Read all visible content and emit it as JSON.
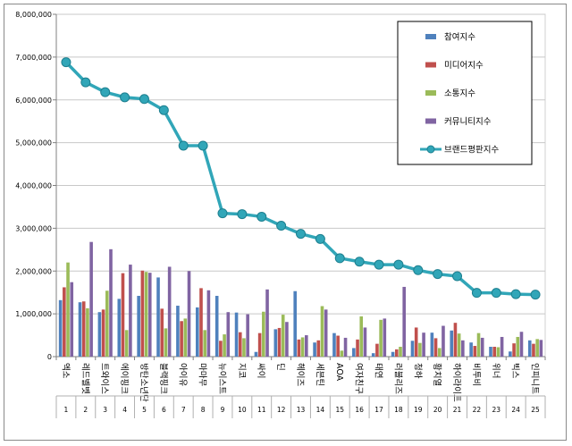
{
  "chart_data": {
    "type": "bar",
    "yticks": [
      "0",
      "1,000,000",
      "2,000,000",
      "3,000,000",
      "4,000,000",
      "5,000,000",
      "6,000,000",
      "7,000,000",
      "8,000,000"
    ],
    "ylim": [
      0,
      8000000
    ],
    "grid": true,
    "legend_position": "top-right",
    "categories": [
      "엑소",
      "레드벨벳",
      "트와이스",
      "에이핑크",
      "방탄소년단",
      "블랙핑크",
      "아이유",
      "마마무",
      "뉴이스트",
      "지코",
      "싸이",
      "딘",
      "헤이즈",
      "세븐틴",
      "AOA",
      "여자친구",
      "태연",
      "러블리즈",
      "청하",
      "황치열",
      "하이라이트",
      "비투비",
      "위너",
      "빅스",
      "인피니트"
    ],
    "ranks": [
      "1",
      "2",
      "3",
      "4",
      "5",
      "6",
      "7",
      "8",
      "9",
      "10",
      "11",
      "12",
      "13",
      "14",
      "15",
      "16",
      "17",
      "18",
      "19",
      "20",
      "21",
      "22",
      "23",
      "24",
      "25"
    ],
    "series": [
      {
        "name": "참여지수",
        "type": "bar",
        "color": "#4f81bd",
        "values": [
          1320000,
          1270000,
          1040000,
          1350000,
          1420000,
          1850000,
          1190000,
          1150000,
          1420000,
          1030000,
          110000,
          640000,
          1530000,
          330000,
          550000,
          200000,
          80000,
          110000,
          370000,
          560000,
          610000,
          330000,
          230000,
          120000,
          380000
        ]
      },
      {
        "name": "미디어지수",
        "type": "bar",
        "color": "#c0504d",
        "values": [
          1620000,
          1290000,
          1100000,
          1950000,
          2010000,
          1120000,
          830000,
          1600000,
          370000,
          570000,
          550000,
          670000,
          400000,
          380000,
          490000,
          400000,
          300000,
          170000,
          680000,
          430000,
          790000,
          250000,
          230000,
          310000,
          300000
        ]
      },
      {
        "name": "소통지수",
        "type": "bar",
        "color": "#9bbb59",
        "values": [
          2200000,
          1130000,
          1540000,
          620000,
          1980000,
          660000,
          890000,
          620000,
          520000,
          430000,
          1050000,
          980000,
          450000,
          1180000,
          140000,
          940000,
          860000,
          230000,
          320000,
          200000,
          540000,
          550000,
          220000,
          460000,
          410000
        ]
      },
      {
        "name": "커뮤니티지수",
        "type": "bar",
        "color": "#8064a2",
        "values": [
          1740000,
          2680000,
          2510000,
          2150000,
          1960000,
          2100000,
          2000000,
          1550000,
          1040000,
          990000,
          1570000,
          810000,
          500000,
          1100000,
          440000,
          680000,
          890000,
          1630000,
          560000,
          720000,
          380000,
          440000,
          460000,
          580000,
          390000
        ]
      },
      {
        "name": "브랜드평판지수",
        "type": "line",
        "color": "#31a6b8",
        "values": [
          6880000,
          6410000,
          6180000,
          6060000,
          6020000,
          5760000,
          4930000,
          4930000,
          3350000,
          3330000,
          3270000,
          3060000,
          2870000,
          2750000,
          2300000,
          2220000,
          2150000,
          2150000,
          2020000,
          1930000,
          1880000,
          1490000,
          1490000,
          1460000,
          1450000
        ]
      }
    ]
  }
}
